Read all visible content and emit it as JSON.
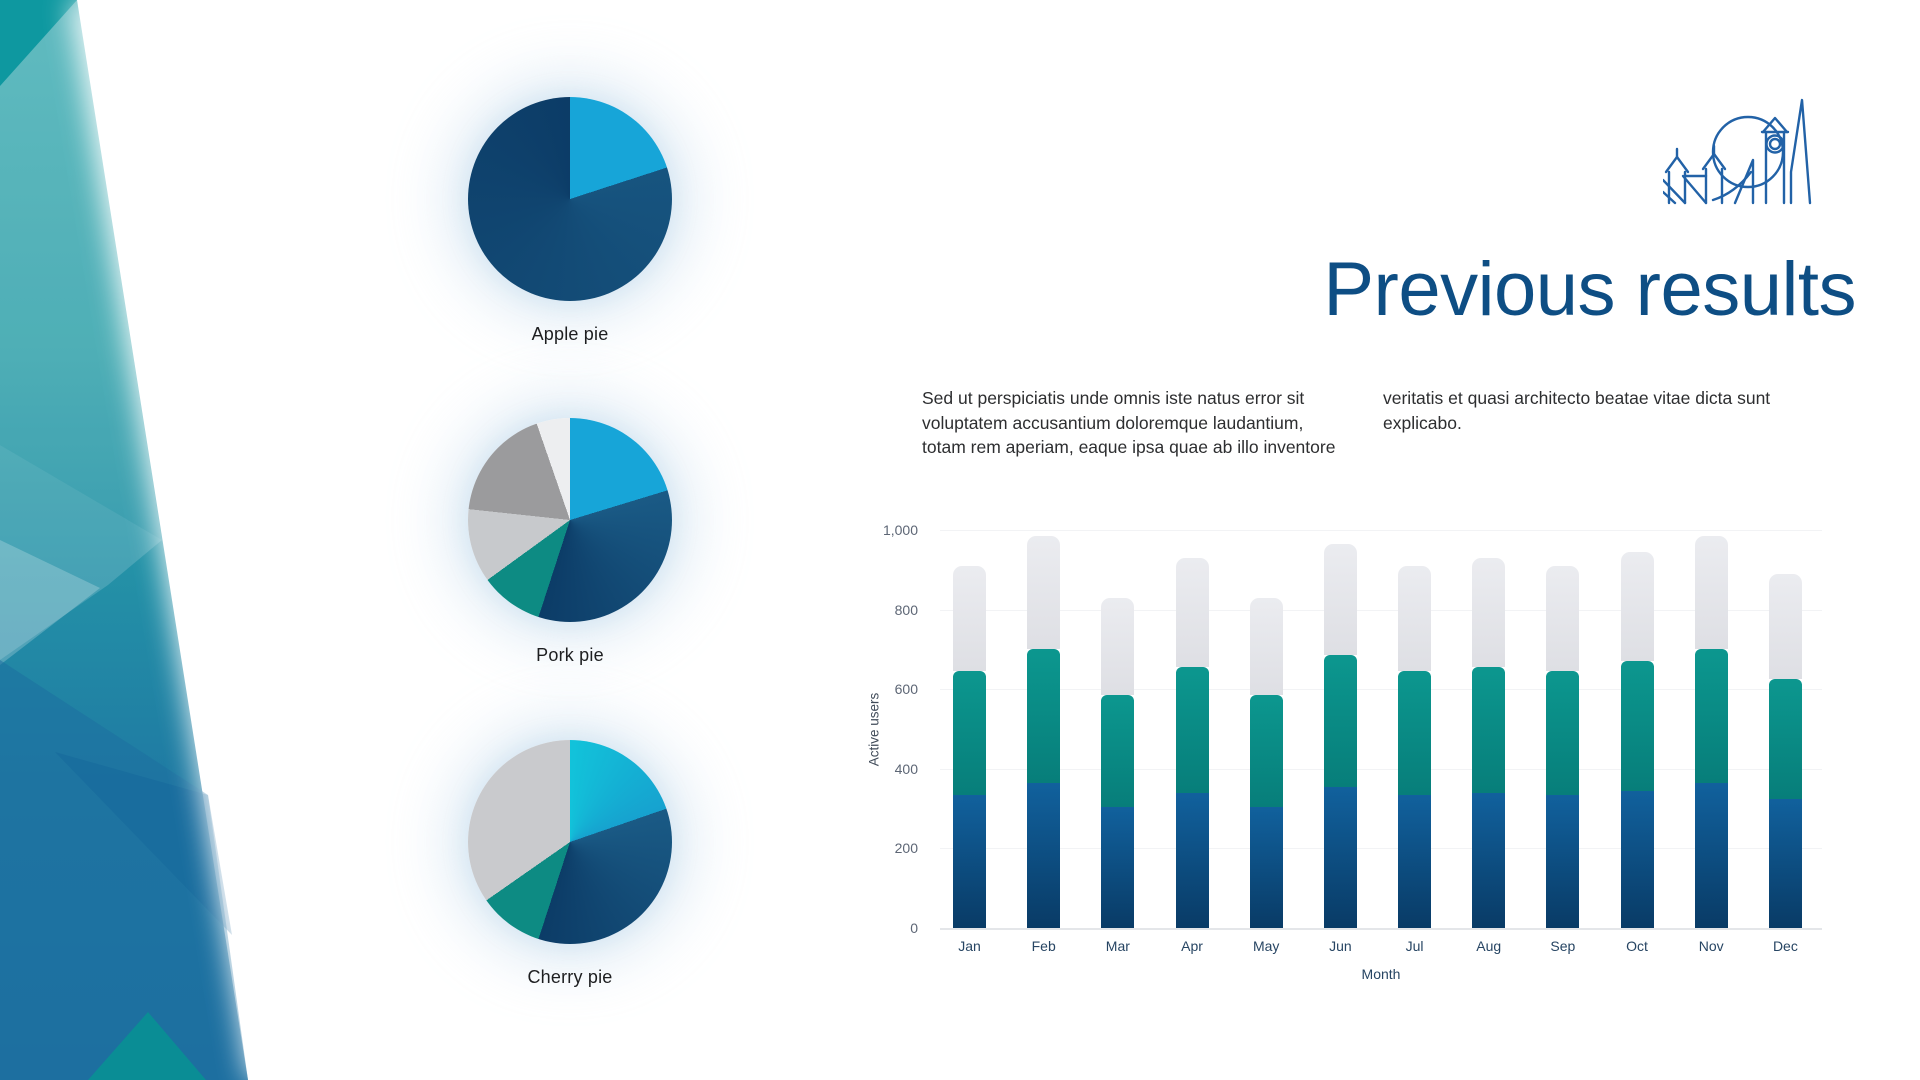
{
  "slide": {
    "title": "Previous results",
    "paragraph_col1": "Sed ut perspiciatis unde omnis iste natus error sit\nvoluptatem accusantium doloremque laudantium,\ntotam rem aperiam, eaque ipsa quae ab illo inventore",
    "paragraph_col2": "veritatis et quasi architecto beatae vitae dicta sunt\nexplicabo."
  },
  "icons": {
    "skyline": "london-skyline-line-art",
    "skyline_color": "#2262a7"
  },
  "colors": {
    "accent_navy": "#0e4e84",
    "pie_cyan": "#17a5d8",
    "pie_cherry_cyan": "#10bed8",
    "pie_teal": "#0d8b83",
    "bar_teal": "#0a918a",
    "bar_blue": "#0f5f9a",
    "bar_gray": "#e1e2e7",
    "band_teal_top": "#4fb3b9",
    "band_blue_bottom": "#1d6fa1"
  },
  "chart_data": [
    {
      "type": "pie",
      "title": "Apple pie",
      "slices": [
        {
          "label": "cyan",
          "color": "#17a5d8",
          "pct": 20
        },
        {
          "label": "navy",
          "color": "#17547f",
          "color2": "#0c3c67",
          "pct": 80
        }
      ]
    },
    {
      "type": "pie",
      "title": "Pork pie",
      "slices": [
        {
          "label": "cyan",
          "color": "#17a5d8",
          "pct": 20.3
        },
        {
          "label": "navy",
          "color": "#1a5a85",
          "color2": "#0c3c67",
          "pct": 34.7
        },
        {
          "label": "teal",
          "color": "#0d8b83",
          "pct": 10.0
        },
        {
          "label": "light-gray",
          "color": "#c7c9cc",
          "pct": 11.7
        },
        {
          "label": "gray",
          "color": "#9b9b9d",
          "pct": 18.0
        },
        {
          "label": "pale-gray",
          "color": "#edeef0",
          "pct": 5.3
        }
      ]
    },
    {
      "type": "pie",
      "title": "Cherry pie",
      "slices": [
        {
          "label": "cyan",
          "color": "#12c3da",
          "color2": "#16a2cf",
          "pct": 19.7
        },
        {
          "label": "navy",
          "color": "#1a5a85",
          "color2": "#0c3c67",
          "pct": 35.3
        },
        {
          "label": "teal",
          "color": "#0d8b83",
          "pct": 10.3
        },
        {
          "label": "light-gray",
          "color": "#c9cacd",
          "pct": 34.7
        }
      ]
    },
    {
      "type": "bar",
      "stacked": true,
      "title": "",
      "xlabel": "Month",
      "ylabel": "Active users",
      "ylim": [
        0,
        1000
      ],
      "yticks": [
        {
          "v": 0,
          "label": "0"
        },
        {
          "v": 200,
          "label": "200"
        },
        {
          "v": 400,
          "label": "400"
        },
        {
          "v": 600,
          "label": "600"
        },
        {
          "v": 800,
          "label": "800"
        },
        {
          "v": 1000,
          "label": "1,000"
        }
      ],
      "categories": [
        "Jan",
        "Feb",
        "Mar",
        "Apr",
        "May",
        "Jun",
        "Jul",
        "Aug",
        "Sep",
        "Oct",
        "Nov",
        "Dec"
      ],
      "series": [
        {
          "name": "navy-segment",
          "color": "#0f5f9a",
          "values": [
            335,
            365,
            305,
            340,
            305,
            355,
            335,
            340,
            335,
            345,
            365,
            325
          ]
        },
        {
          "name": "teal-segment",
          "color": "#0a918a",
          "values": [
            310,
            335,
            280,
            315,
            280,
            330,
            310,
            315,
            310,
            325,
            335,
            300
          ]
        },
        {
          "name": "gray-segment",
          "color": "#e1e2e7",
          "values": [
            265,
            285,
            245,
            275,
            245,
            280,
            265,
            275,
            265,
            275,
            285,
            265
          ]
        }
      ],
      "totals": [
        910,
        985,
        830,
        930,
        830,
        965,
        910,
        930,
        910,
        945,
        985,
        890
      ]
    }
  ]
}
